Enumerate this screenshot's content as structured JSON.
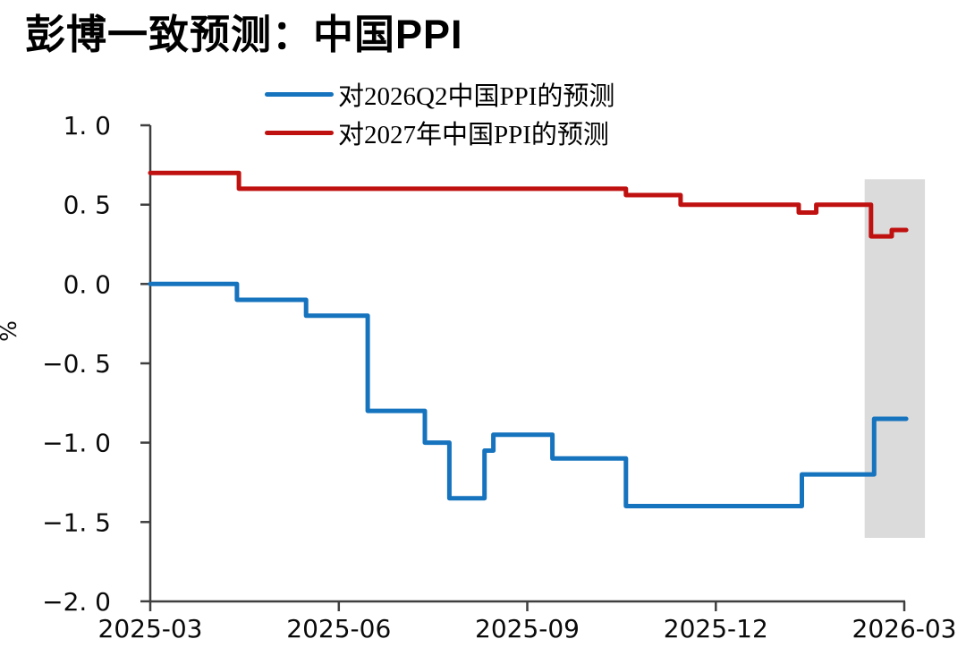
{
  "title": {
    "cn": "彭博一致预测：中国",
    "en": "PPI",
    "full": "彭博一致预测：中国PPI"
  },
  "chart_data": {
    "type": "line",
    "line_style": "step",
    "title": "彭博一致预测：中国PPI",
    "xlabel": "",
    "ylabel": "%",
    "ylim": [
      -2.0,
      1.0
    ],
    "grid": false,
    "legend_position": "top-center",
    "x_unit": "months since 2025-03",
    "y_ticks": [
      1.0,
      0.5,
      0.0,
      -0.5,
      -1.0,
      -1.5,
      -2.0
    ],
    "y_tick_labels": [
      "1. 0",
      "0. 5",
      "0. 0",
      "−0. 5",
      "−1. 0",
      "−1. 5",
      "−2. 0"
    ],
    "x_tick_months": [
      0,
      3,
      6,
      9,
      12
    ],
    "x_tick_labels": [
      "2025-03",
      "2025-06",
      "2025-09",
      "2025-12",
      "2026-03"
    ],
    "highlight_band": {
      "x_start_month": 11.37,
      "x_end_month": 12.33,
      "y_min": -1.6,
      "y_max": 0.66,
      "color": "#DBDBDB"
    },
    "segments_format": "[month_start, month_end, value_percent]",
    "series": [
      {
        "name": "对2026Q2中国PPI的预测",
        "color": "#1673BE",
        "segments": [
          [
            0.0,
            1.38,
            0.0
          ],
          [
            1.38,
            2.48,
            -0.1
          ],
          [
            2.48,
            3.46,
            -0.2
          ],
          [
            3.46,
            4.37,
            -0.8
          ],
          [
            4.37,
            4.76,
            -1.0
          ],
          [
            4.76,
            5.32,
            -1.35
          ],
          [
            5.32,
            5.46,
            -1.05
          ],
          [
            5.46,
            6.4,
            -0.95
          ],
          [
            6.4,
            7.57,
            -1.1
          ],
          [
            7.57,
            10.37,
            -1.4
          ],
          [
            10.37,
            11.52,
            -1.2
          ],
          [
            11.52,
            12.03,
            -0.85
          ]
        ]
      },
      {
        "name": "对2027年中国PPI的预测",
        "color": "#C01111",
        "segments": [
          [
            0.0,
            1.41,
            0.7
          ],
          [
            1.41,
            7.57,
            0.6
          ],
          [
            7.57,
            8.44,
            0.56
          ],
          [
            8.44,
            10.32,
            0.5
          ],
          [
            10.32,
            10.6,
            0.45
          ],
          [
            10.6,
            11.47,
            0.5
          ],
          [
            11.47,
            11.8,
            0.3
          ],
          [
            11.8,
            12.03,
            0.34
          ]
        ]
      }
    ]
  }
}
